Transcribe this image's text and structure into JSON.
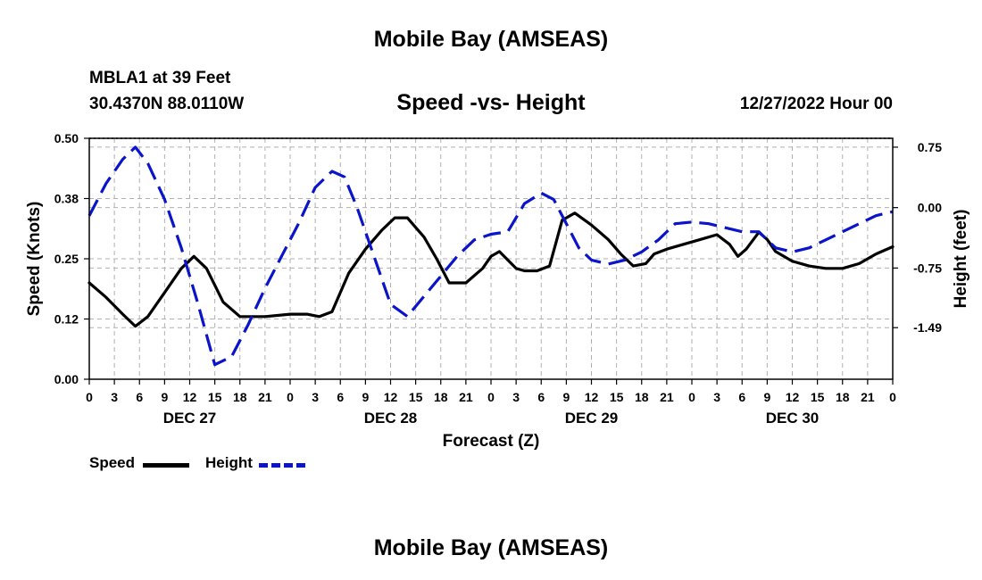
{
  "page": {
    "title_top": "Mobile Bay (AMSEAS)",
    "title_bottom": "Mobile Bay (AMSEAS)",
    "station": "MBLA1 at 39 Feet",
    "coords": "30.4370N  88.0110W",
    "subtitle": "Speed -vs- Height",
    "datetime": "12/27/2022 Hour 00"
  },
  "legend": {
    "speed_label": "Speed",
    "height_label": "Height"
  },
  "colors": {
    "speed": "#000000",
    "height": "#0a14c8",
    "grid": "#b0b0b0"
  },
  "chart_data": {
    "type": "line",
    "xlabel": "Forecast (Z)",
    "ylabel": "Speed (Knots)",
    "y2label": "Height (feet)",
    "xlim": [
      0,
      96
    ],
    "ylim": [
      0,
      0.5
    ],
    "y2lim": [
      -2.13,
      0.86
    ],
    "x_ticks": [
      0,
      3,
      6,
      9,
      12,
      15,
      18,
      21,
      24,
      27,
      30,
      33,
      36,
      39,
      42,
      45,
      48,
      51,
      54,
      57,
      60,
      63,
      66,
      69,
      72,
      75,
      78,
      81,
      84,
      87,
      90,
      93,
      96
    ],
    "x_tick_labels": [
      "0",
      "3",
      "6",
      "9",
      "12",
      "15",
      "18",
      "21",
      "0",
      "3",
      "6",
      "9",
      "12",
      "15",
      "18",
      "21",
      "0",
      "3",
      "6",
      "9",
      "12",
      "15",
      "18",
      "21",
      "0",
      "3",
      "6",
      "9",
      "12",
      "15",
      "18",
      "21",
      "0"
    ],
    "day_labels": [
      {
        "x": 12,
        "label": "DEC 27"
      },
      {
        "x": 36,
        "label": "DEC 28"
      },
      {
        "x": 60,
        "label": "DEC 29"
      },
      {
        "x": 84,
        "label": "DEC 30"
      }
    ],
    "y_ticks": [
      0,
      0.125,
      0.25,
      0.375,
      0.5
    ],
    "y_tick_labels": [
      "0.00",
      "0.12",
      "0.25",
      "0.38",
      "0.50"
    ],
    "y2_ticks": [
      0.75,
      0.0,
      -0.75,
      -1.49
    ],
    "y2_tick_labels": [
      "0.75",
      "0.00",
      "-0.75",
      "-1.49"
    ],
    "series": [
      {
        "name": "Speed",
        "axis": "left",
        "x": [
          0,
          2,
          4,
          5.5,
          7,
          9,
          11,
          12.5,
          14,
          16,
          18,
          21,
          24,
          26,
          27.5,
          29,
          31,
          33,
          35,
          36.5,
          38,
          40,
          41.5,
          43,
          45,
          47,
          48,
          49,
          51,
          52,
          53.5,
          55,
          56.5,
          58,
          60,
          62,
          63.5,
          65,
          66.5,
          67.5,
          69,
          71,
          73,
          75,
          76.5,
          77.5,
          78.5,
          80,
          81,
          82,
          84,
          86,
          88,
          90,
          92,
          94,
          96
        ],
        "values": [
          0.2,
          0.17,
          0.135,
          0.11,
          0.13,
          0.18,
          0.23,
          0.255,
          0.23,
          0.16,
          0.13,
          0.13,
          0.135,
          0.135,
          0.13,
          0.14,
          0.22,
          0.27,
          0.31,
          0.335,
          0.335,
          0.295,
          0.25,
          0.2,
          0.2,
          0.23,
          0.255,
          0.265,
          0.23,
          0.225,
          0.225,
          0.235,
          0.33,
          0.345,
          0.32,
          0.29,
          0.26,
          0.235,
          0.24,
          0.26,
          0.27,
          0.28,
          0.29,
          0.3,
          0.28,
          0.255,
          0.27,
          0.305,
          0.29,
          0.265,
          0.245,
          0.235,
          0.23,
          0.23,
          0.24,
          0.26,
          0.275
        ]
      },
      {
        "name": "Height",
        "axis": "right",
        "x": [
          0,
          2,
          4,
          5.5,
          7,
          9,
          11,
          13,
          15,
          17,
          19,
          21,
          23,
          25,
          27,
          29,
          30.5,
          32,
          34,
          36,
          38,
          40,
          42,
          44,
          46,
          48,
          50,
          52,
          54,
          55.5,
          57,
          58.5,
          60,
          62,
          64,
          66,
          68,
          70,
          72,
          74,
          76,
          78,
          80,
          82,
          84,
          86,
          88,
          90,
          92,
          94,
          96
        ],
        "values": [
          -0.1,
          0.3,
          0.6,
          0.75,
          0.55,
          0.1,
          -0.5,
          -1.2,
          -1.95,
          -1.85,
          -1.45,
          -1.0,
          -0.6,
          -0.2,
          0.25,
          0.45,
          0.38,
          0.0,
          -0.6,
          -1.2,
          -1.35,
          -1.1,
          -0.85,
          -0.6,
          -0.4,
          -0.33,
          -0.3,
          0.05,
          0.18,
          0.1,
          -0.2,
          -0.5,
          -0.65,
          -0.7,
          -0.65,
          -0.55,
          -0.4,
          -0.2,
          -0.18,
          -0.2,
          -0.25,
          -0.3,
          -0.3,
          -0.5,
          -0.55,
          -0.5,
          -0.4,
          -0.3,
          -0.2,
          -0.1,
          -0.05
        ]
      }
    ]
  }
}
